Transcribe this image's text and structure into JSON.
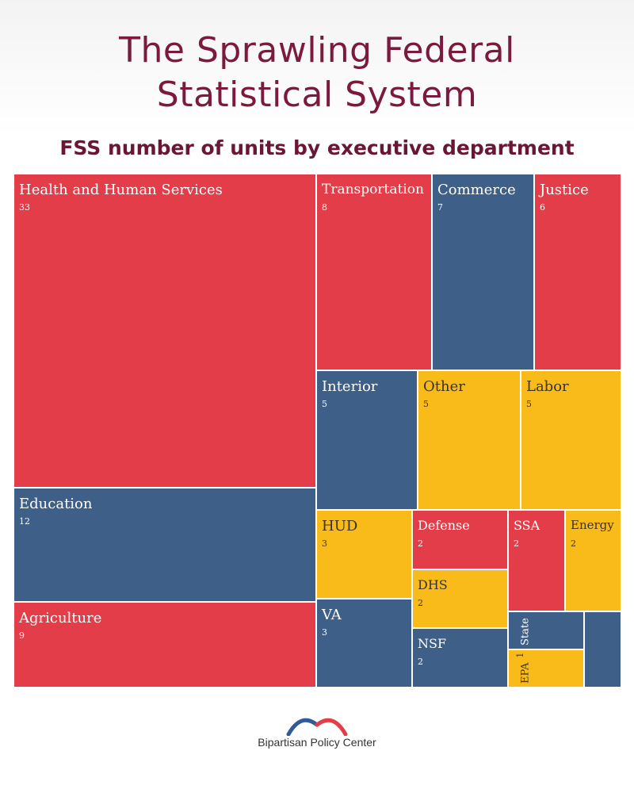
{
  "title_line1": "The Sprawling Federal",
  "title_line2": "Statistical System",
  "subtitle": "FSS number of units by executive department",
  "org_name": "Bipartisan Policy Center",
  "colors": {
    "red": "#e23d48",
    "blue": "#3e5f87",
    "gold": "#f8bb19"
  },
  "chart_data": {
    "type": "treemap",
    "title": "FSS number of units by executive department",
    "items": [
      {
        "label": "Health and Human Services",
        "value": "33",
        "color": "red"
      },
      {
        "label": "Education",
        "value": "12",
        "color": "blue"
      },
      {
        "label": "Agriculture",
        "value": "9",
        "color": "red"
      },
      {
        "label": "Transportation",
        "value": "8",
        "color": "red"
      },
      {
        "label": "Commerce",
        "value": "7",
        "color": "blue"
      },
      {
        "label": "Justice",
        "value": "6",
        "color": "red"
      },
      {
        "label": "Interior",
        "value": "5",
        "color": "blue"
      },
      {
        "label": "Other",
        "value": "5",
        "color": "gold"
      },
      {
        "label": "Labor",
        "value": "5",
        "color": "gold"
      },
      {
        "label": "HUD",
        "value": "3",
        "color": "gold"
      },
      {
        "label": "VA",
        "value": "3",
        "color": "blue"
      },
      {
        "label": "Defense",
        "value": "2",
        "color": "red"
      },
      {
        "label": "DHS",
        "value": "2",
        "color": "gold"
      },
      {
        "label": "NSF",
        "value": "2",
        "color": "blue"
      },
      {
        "label": "SSA",
        "value": "2",
        "color": "red"
      },
      {
        "label": "Energy",
        "value": "2",
        "color": "gold"
      },
      {
        "label": "State",
        "value": "1",
        "color": "blue"
      },
      {
        "label": "EPA",
        "value": "1",
        "color": "gold"
      },
      {
        "label": "",
        "value": "",
        "color": "blue"
      }
    ]
  }
}
